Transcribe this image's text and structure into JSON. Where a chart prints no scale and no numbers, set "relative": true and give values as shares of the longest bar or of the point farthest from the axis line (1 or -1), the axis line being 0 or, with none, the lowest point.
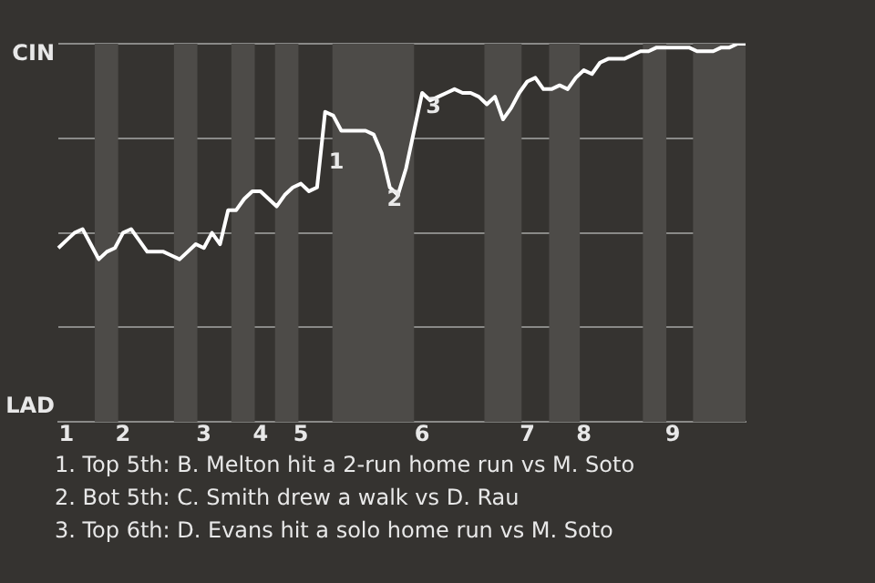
{
  "chart_data": {
    "type": "line",
    "relative": true,
    "categories": [
      null,
      "1",
      null,
      null,
      null,
      null,
      null,
      null,
      "2",
      null,
      null,
      null,
      null,
      null,
      null,
      null,
      null,
      null,
      "3",
      null,
      null,
      null,
      null,
      null,
      null,
      "4",
      null,
      null,
      null,
      null,
      "5",
      null,
      null,
      null,
      null,
      null,
      null,
      null,
      null,
      null,
      null,
      null,
      null,
      null,
      null,
      "6",
      null,
      null,
      null,
      null,
      null,
      null,
      null,
      null,
      null,
      null,
      null,
      null,
      "7",
      null,
      null,
      null,
      null,
      null,
      null,
      "8",
      null,
      null,
      null,
      null,
      null,
      null,
      null,
      null,
      null,
      null,
      "9",
      null,
      null,
      null,
      null,
      null,
      null,
      null,
      null,
      null
    ],
    "series": [
      {
        "color": "#ffffff",
        "values": [
          0.46,
          0.48,
          0.5,
          0.51,
          0.47,
          0.43,
          0.45,
          0.46,
          0.5,
          0.51,
          0.48,
          0.45,
          0.45,
          0.45,
          0.44,
          0.43,
          0.45,
          0.47,
          0.46,
          0.5,
          0.47,
          0.56,
          0.56,
          0.59,
          0.61,
          0.61,
          0.59,
          0.57,
          0.6,
          0.62,
          0.63,
          0.61,
          0.62,
          0.82,
          0.81,
          0.77,
          0.77,
          0.77,
          0.77,
          0.76,
          0.71,
          0.62,
          0.6,
          0.67,
          0.77,
          0.87,
          0.85,
          0.86,
          0.87,
          0.88,
          0.87,
          0.87,
          0.86,
          0.84,
          0.86,
          0.8,
          0.83,
          0.87,
          0.9,
          0.91,
          0.88,
          0.88,
          0.89,
          0.88,
          0.91,
          0.93,
          0.92,
          0.95,
          0.96,
          0.96,
          0.96,
          0.97,
          0.98,
          0.98,
          0.99,
          0.99,
          0.99,
          0.99,
          0.99,
          0.98,
          0.98,
          0.98,
          0.99,
          0.99,
          1.0,
          1.0
        ]
      }
    ],
    "grid": "y",
    "legend": false,
    "marker": "none",
    "line_style": "solid",
    "annotations": [
      "CIN",
      "LAD",
      "1",
      "2",
      "3",
      "1. Top 5th: B. Melton hit a 2-run home run vs M. Soto",
      "2. Bot 5th: C. Smith drew a walk vs D. Rau",
      "3. Top 6th: D. Evans hit a solo home run vs M. Soto"
    ]
  }
}
